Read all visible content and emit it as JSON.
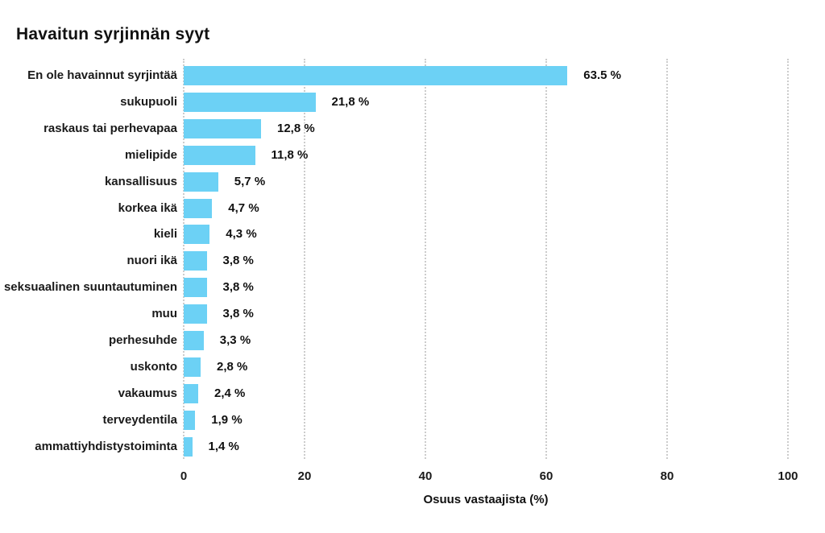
{
  "page": {
    "background": "#ffffff",
    "text_color": "#1a1a1a",
    "gridline_color": "#cccccc"
  },
  "chart_data": {
    "type": "bar",
    "orientation": "horizontal",
    "title": "Havaitun syrjinnän syyt",
    "xlabel": "Osuus vastaajista (%)",
    "xlim": [
      0,
      100
    ],
    "xticks": [
      0,
      20,
      40,
      60,
      80,
      100
    ],
    "grid": "vertical dotted gridlines, no axis line",
    "legend": "none",
    "bar_color": "#6CD1F5",
    "categories": [
      "En ole havainnut syrjintää",
      "sukupuoli",
      "raskaus tai perhevapaa",
      "mielipide",
      "kansallisuus",
      "korkea ikä",
      "kieli",
      "nuori ikä",
      "seksuaalinen suuntautuminen",
      "muu",
      "perhesuhde",
      "uskonto",
      "vakaumus",
      "terveydentila",
      "ammattiyhdistystoiminta"
    ],
    "values": [
      63.5,
      21.8,
      12.8,
      11.8,
      5.7,
      4.7,
      4.3,
      3.8,
      3.8,
      3.8,
      3.3,
      2.8,
      2.4,
      1.9,
      1.4
    ],
    "value_labels": [
      "63.5 %",
      "21,8 %",
      "12,8 %",
      "11,8 %",
      "5,7 %",
      "4,7 %",
      "4,3 %",
      "3,8 %",
      "3,8 %",
      "3,8 %",
      "3,3 %",
      "2,8 %",
      "2,4 %",
      "1,9 %",
      "1,4 %"
    ]
  }
}
